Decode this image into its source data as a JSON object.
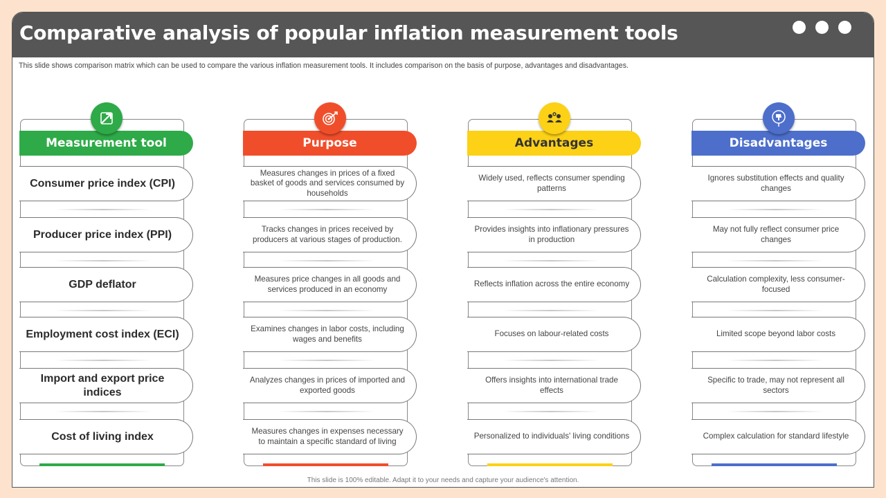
{
  "title": "Comparative analysis of popular inflation measurement tools",
  "subtitle": "This slide shows comparison matrix which can be used to compare the various inflation measurement tools. It includes comparison on the basis of purpose, advantages and disadvantages.",
  "footer": "This slide is 100% editable. Adapt it to your needs and capture your audience's attention.",
  "colors": {
    "green": "#2eaa48",
    "red": "#f04e2b",
    "yellow": "#fcd116",
    "blue": "#4d6fcb",
    "titlebar": "#565656",
    "background": "#fde3cd"
  },
  "columns": [
    {
      "header": "Measurement tool",
      "icon": "growth-arrow-icon",
      "items": [
        "Consumer price index (CPI)",
        "Producer price index (PPI)",
        "GDP deflator",
        "Employment cost index (ECI)",
        "Import and export price indices",
        "Cost of living index"
      ]
    },
    {
      "header": "Purpose",
      "icon": "target-icon",
      "items": [
        "Measures changes in prices of a fixed basket of goods and services consumed by households",
        "Tracks changes in prices received by producers at various stages of production.",
        "Measures price changes in all goods and services produced in an economy",
        "Examines changes in labor costs, including wages and benefits",
        "Analyzes changes in prices of imported and exported goods",
        "Measures changes in expenses necessary to maintain a specific standard of living"
      ]
    },
    {
      "header": "Advantages",
      "icon": "team-icon",
      "items": [
        "Widely used, reflects consumer spending patterns",
        "Provides insights into inflationary pressures in production",
        "Reflects inflation across the entire economy",
        "Focuses on labour-related costs",
        "Offers insights into international trade effects",
        "Personalized to individuals' living conditions"
      ]
    },
    {
      "header": "Disadvantages",
      "icon": "thumbs-down-icon",
      "items": [
        "Ignores substitution effects and quality changes",
        "May not fully reflect consumer price changes",
        "Calculation complexity, less consumer-focused",
        "Limited scope beyond labor costs",
        "Specific to trade, may not represent all sectors",
        "Complex calculation for standard lifestyle"
      ]
    }
  ]
}
